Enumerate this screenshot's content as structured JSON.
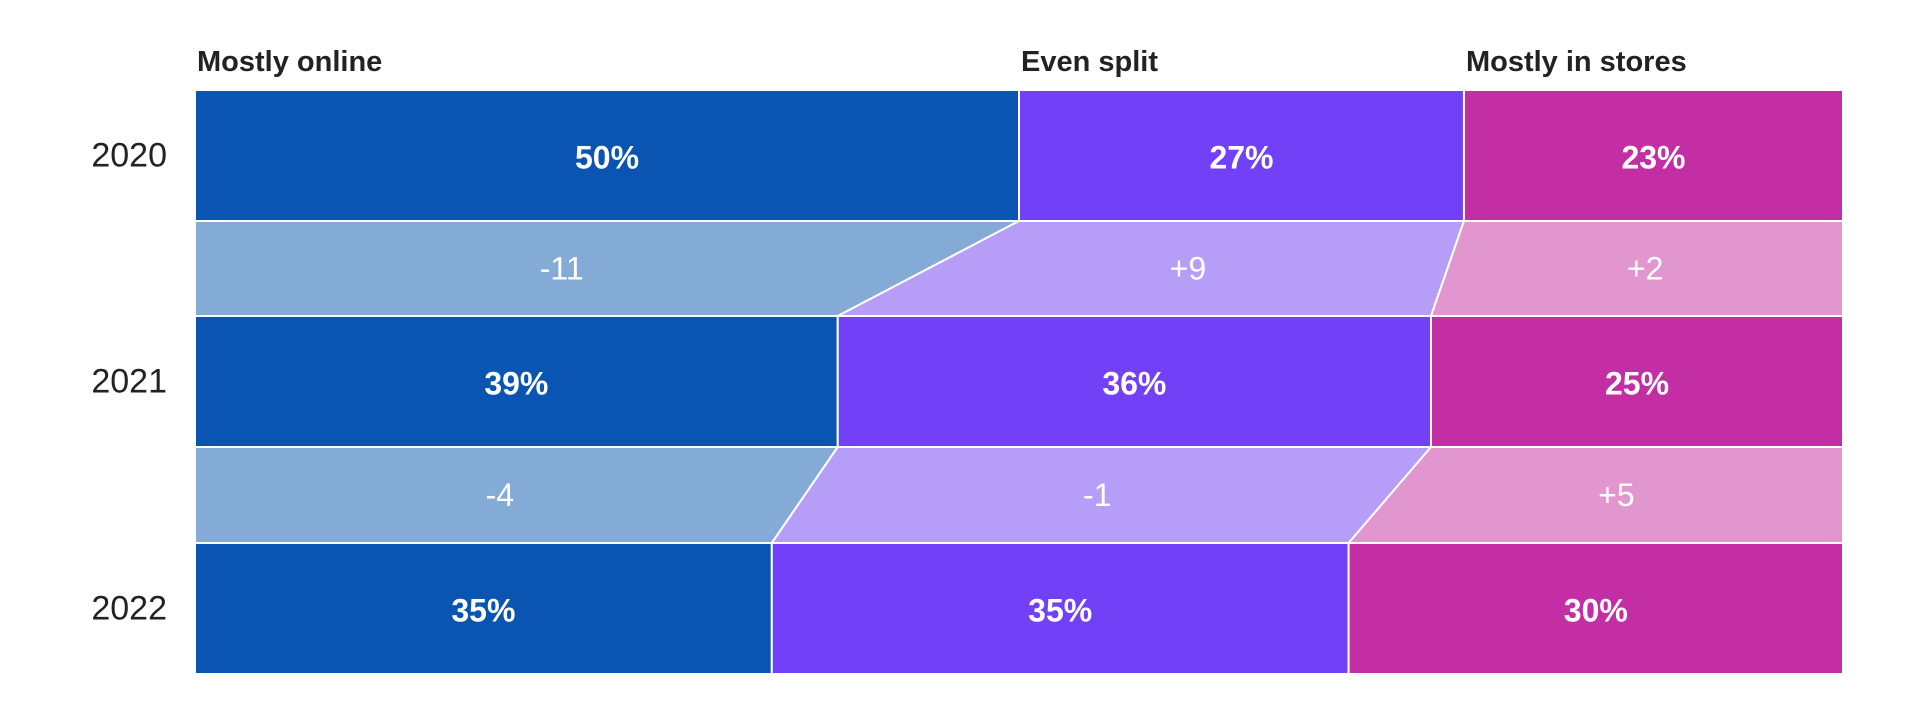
{
  "chart_data": {
    "type": "bar",
    "subtype": "stacked-100-horizontal-with-transitions",
    "categories": [
      "Mostly online",
      "Even split",
      "Mostly in stores"
    ],
    "years": [
      "2020",
      "2021",
      "2022"
    ],
    "series": [
      {
        "name": "2020",
        "values": [
          50,
          27,
          23
        ],
        "labels": [
          "50%",
          "27%",
          "23%"
        ]
      },
      {
        "name": "2021",
        "values": [
          39,
          36,
          25
        ],
        "labels": [
          "39%",
          "36%",
          "25%"
        ]
      },
      {
        "name": "2022",
        "values": [
          35,
          35,
          30
        ],
        "labels": [
          "35%",
          "35%",
          "30%"
        ]
      }
    ],
    "changes": [
      {
        "period": "2020-2021",
        "values": [
          -11,
          9,
          2
        ],
        "labels": [
          "-11",
          "+9",
          "+2"
        ]
      },
      {
        "period": "2021-2022",
        "values": [
          -4,
          -1,
          5
        ],
        "labels": [
          "-4",
          "-1",
          "+5"
        ]
      }
    ],
    "colors": {
      "bars": [
        "#0955B1",
        "#7140F7",
        "#C42EA5"
      ],
      "bands": [
        "#84AAD6",
        "#B69DF8",
        "#E296D0"
      ],
      "text_dark": "#222222",
      "text_light": "#FFFFFF",
      "separator": "#FFFFFF"
    },
    "xlim": [
      0,
      100
    ],
    "legend": "top",
    "grid": false
  }
}
